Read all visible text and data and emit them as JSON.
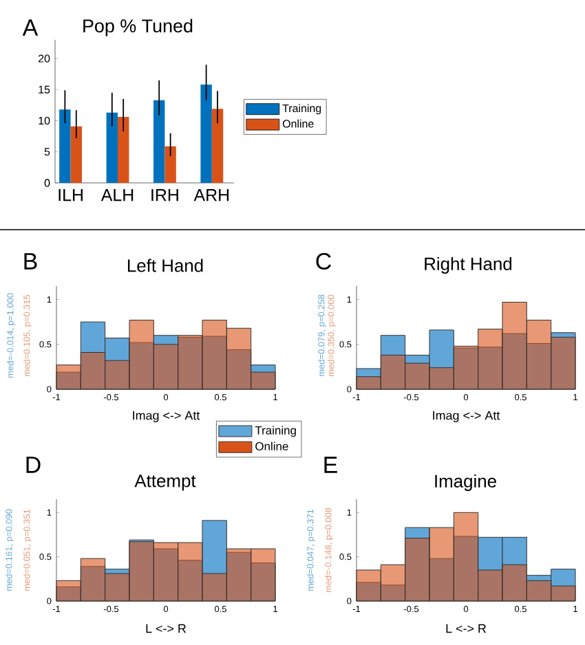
{
  "chart_data": [
    {
      "type": "bar",
      "title": "Pop % Tuned",
      "categories": [
        "ILH",
        "ALH",
        "IRH",
        "ARH"
      ],
      "series": [
        {
          "name": "Training",
          "color": "#0072bd",
          "values": [
            11.8,
            11.3,
            13.3,
            15.8
          ],
          "errors": [
            [
              9.6,
              14.9
            ],
            [
              9.1,
              14.5
            ],
            [
              10.9,
              16.5
            ],
            [
              13.3,
              19.0
            ]
          ]
        },
        {
          "name": "Online",
          "color": "#d95319",
          "values": [
            9.1,
            10.6,
            5.9,
            11.9
          ],
          "errors": [
            [
              7.2,
              11.7
            ],
            [
              8.3,
              13.5
            ],
            [
              4.3,
              8.0
            ],
            [
              9.6,
              14.8
            ]
          ]
        }
      ],
      "ylim": [
        0,
        23
      ],
      "yticks": [
        0,
        5,
        10,
        15,
        20
      ],
      "legend": "right",
      "annotations": [
        "A"
      ]
    },
    {
      "type": "histogram",
      "title": "Left Hand",
      "xlabel": "Imag <-> Att",
      "bins": [
        -1,
        -0.7778,
        -0.5556,
        -0.3333,
        -0.1111,
        0.1111,
        0.3333,
        0.5556,
        0.7778,
        1
      ],
      "series": [
        {
          "color": "#61a6d8",
          "values": [
            0.19,
            0.75,
            0.57,
            0.52,
            0.6,
            0.58,
            0.59,
            0.44,
            0.27
          ]
        },
        {
          "color": "#d95319",
          "values": [
            0.27,
            0.41,
            0.32,
            0.77,
            0.5,
            0.6,
            0.77,
            0.68,
            0.19
          ]
        }
      ],
      "xlim": [
        -1,
        1
      ],
      "ylim": [
        0,
        1.15
      ],
      "xticks": [
        -1,
        -0.5,
        0,
        0.5,
        1
      ],
      "yticks": [
        0,
        0.5,
        1
      ],
      "annotations": [
        "B",
        "med=-0.014, p=1.000",
        "med=0.105, p=0.315"
      ]
    },
    {
      "type": "histogram",
      "title": "Right Hand",
      "xlabel": "Imag <-> Att",
      "bins": [
        -1,
        -0.7778,
        -0.5556,
        -0.3333,
        -0.1111,
        0.1111,
        0.3333,
        0.5556,
        0.7778,
        1
      ],
      "series": [
        {
          "color": "#61a6d8",
          "values": [
            0.23,
            0.6,
            0.38,
            0.66,
            0.46,
            0.47,
            0.62,
            0.51,
            0.63
          ]
        },
        {
          "color": "#d95319",
          "values": [
            0.14,
            0.38,
            0.29,
            0.24,
            0.48,
            0.67,
            0.97,
            0.77,
            0.58
          ]
        }
      ],
      "xlim": [
        -1,
        1
      ],
      "ylim": [
        0,
        1.15
      ],
      "xticks": [
        -1,
        -0.5,
        0,
        0.5,
        1
      ],
      "yticks": [
        0,
        0.5,
        1
      ],
      "annotations": [
        "C",
        "med=0.079, p=0.258",
        "med=0.350, p=0.000"
      ]
    },
    {
      "type": "histogram",
      "title": "Attempt",
      "xlabel": "L <-> R",
      "bins": [
        -1,
        -0.7778,
        -0.5556,
        -0.3333,
        -0.1111,
        0.1111,
        0.3333,
        0.5556,
        0.7778,
        1
      ],
      "series": [
        {
          "name": "Training",
          "color": "#61a6d8",
          "values": [
            0.16,
            0.39,
            0.36,
            0.69,
            0.59,
            0.46,
            0.91,
            0.55,
            0.43
          ]
        },
        {
          "name": "Online",
          "color": "#d95319",
          "values": [
            0.23,
            0.48,
            0.31,
            0.67,
            0.66,
            0.66,
            0.31,
            0.59,
            0.59
          ]
        }
      ],
      "xlim": [
        -1,
        1
      ],
      "ylim": [
        0,
        1.15
      ],
      "xticks": [
        -1,
        -0.5,
        0,
        0.5,
        1
      ],
      "yticks": [
        0,
        0.5,
        1
      ],
      "legend": "top right",
      "annotations": [
        "D",
        "med=0.161, p=0.090",
        "med=0.051, p=0.351"
      ]
    },
    {
      "type": "histogram",
      "title": "Imagine",
      "xlabel": "L <-> R",
      "bins": [
        -1,
        -0.7778,
        -0.5556,
        -0.3333,
        -0.1111,
        0.1111,
        0.3333,
        0.5556,
        0.7778,
        1
      ],
      "series": [
        {
          "color": "#61a6d8",
          "values": [
            0.21,
            0.18,
            0.83,
            0.48,
            0.73,
            0.72,
            0.72,
            0.29,
            0.36
          ]
        },
        {
          "color": "#d95319",
          "values": [
            0.35,
            0.41,
            0.71,
            0.83,
            1.0,
            0.35,
            0.41,
            0.23,
            0.17
          ]
        }
      ],
      "xlim": [
        -1,
        1
      ],
      "ylim": [
        0,
        1.15
      ],
      "xticks": [
        -1,
        -0.5,
        0,
        0.5,
        1
      ],
      "yticks": [
        0,
        0.5,
        1
      ],
      "annotations": [
        "E",
        "med=0.047, p=0.371",
        "med=-0.148, p=0.008"
      ]
    }
  ]
}
